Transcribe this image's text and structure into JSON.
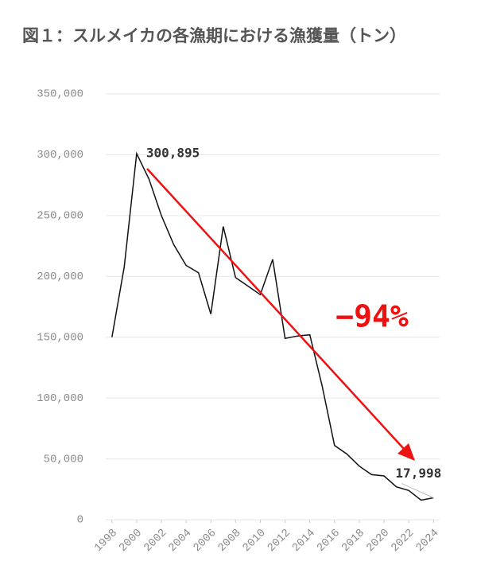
{
  "chart_data": {
    "type": "line",
    "title": "図１：スルメイカの各漁期における漁獲量（トン）",
    "x": [
      1998,
      1999,
      2000,
      2001,
      2002,
      2003,
      2004,
      2005,
      2006,
      2007,
      2008,
      2009,
      2010,
      2011,
      2012,
      2013,
      2014,
      2015,
      2016,
      2017,
      2018,
      2019,
      2020,
      2021,
      2022,
      2023,
      2024
    ],
    "series": [
      {
        "color": "#111111",
        "values": [
          150000,
          208000,
          300895,
          280000,
          250000,
          226000,
          209000,
          203000,
          169000,
          241000,
          199000,
          192000,
          185000,
          214000,
          149000,
          151000,
          152000,
          110000,
          61000,
          54000,
          44000,
          37000,
          36000,
          27000,
          24000,
          16000,
          17998
        ],
        "value_labels": [
          null,
          null,
          "300,895",
          null,
          null,
          null,
          null,
          null,
          null,
          null,
          null,
          null,
          null,
          null,
          null,
          null,
          null,
          null,
          null,
          null,
          null,
          null,
          null,
          null,
          null,
          null,
          "17,998"
        ]
      }
    ],
    "annotation": "−94%",
    "annotation_color": "#ee1111",
    "xlim": [
      1997.5,
      2024.5
    ],
    "xticks": [
      1998,
      2000,
      2002,
      2004,
      2006,
      2008,
      2010,
      2012,
      2014,
      2016,
      2018,
      2020,
      2022,
      2024
    ],
    "ylim": [
      0,
      350000
    ],
    "yticks": [
      {
        "value": 0,
        "label": "0"
      },
      {
        "value": 50000,
        "label": "50,000"
      },
      {
        "value": 100000,
        "label": "100,000"
      },
      {
        "value": 150000,
        "label": "150,000"
      },
      {
        "value": 200000,
        "label": "200,000"
      },
      {
        "value": 250000,
        "label": "250,000"
      },
      {
        "value": 300000,
        "label": "300,000"
      },
      {
        "value": 350000,
        "label": "350,000"
      }
    ],
    "grid": true
  }
}
